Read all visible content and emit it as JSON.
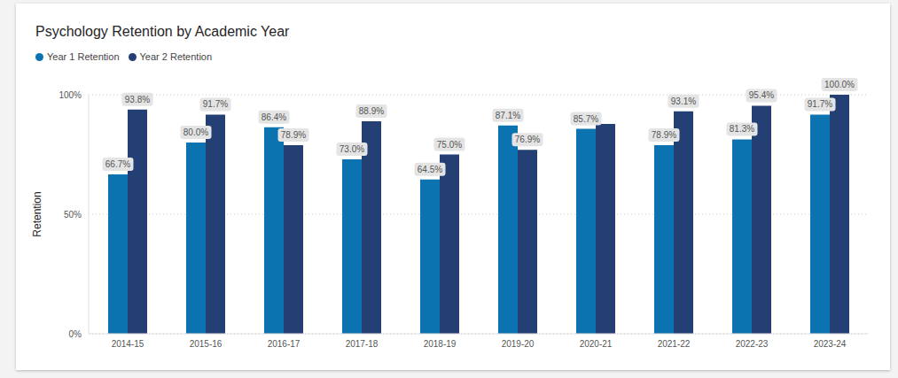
{
  "chart_data": {
    "type": "bar",
    "title": "Psychology Retention by Academic Year",
    "y_label": "Retention",
    "categories": [
      "2014-15",
      "2015-16",
      "2016-17",
      "2017-18",
      "2018-19",
      "2019-20",
      "2020-21",
      "2021-22",
      "2022-23",
      "2023-24"
    ],
    "series": [
      {
        "name": "Year 1 Retention",
        "color": "#0a73b0",
        "values": [
          66.7,
          80.0,
          86.4,
          73.0,
          64.5,
          87.1,
          85.7,
          78.9,
          81.3,
          91.7
        ],
        "value_labels": [
          "66.7%",
          "80.0%",
          "86.4%",
          "73.0%",
          "64.5%",
          "87.1%",
          "85.7%",
          "78.9%",
          "81.3%",
          "91.7%"
        ]
      },
      {
        "name": "Year 2 Retention",
        "color": "#233f74",
        "values": [
          93.8,
          91.7,
          78.9,
          88.9,
          75.0,
          76.9,
          87.8,
          93.1,
          95.4,
          100.0
        ],
        "value_labels": [
          "93.8%",
          "91.7%",
          "78.9%",
          "88.9%",
          "75.0%",
          "76.9%",
          null,
          "93.1%",
          "95.4%",
          "100.0%"
        ]
      }
    ],
    "ylim": [
      0,
      100
    ],
    "yticks": [
      {
        "value": 0,
        "label": "0%"
      },
      {
        "value": 50,
        "label": "50%"
      },
      {
        "value": 100,
        "label": "100%"
      }
    ],
    "grid": true,
    "legend": "top-left",
    "data_labels": true
  }
}
